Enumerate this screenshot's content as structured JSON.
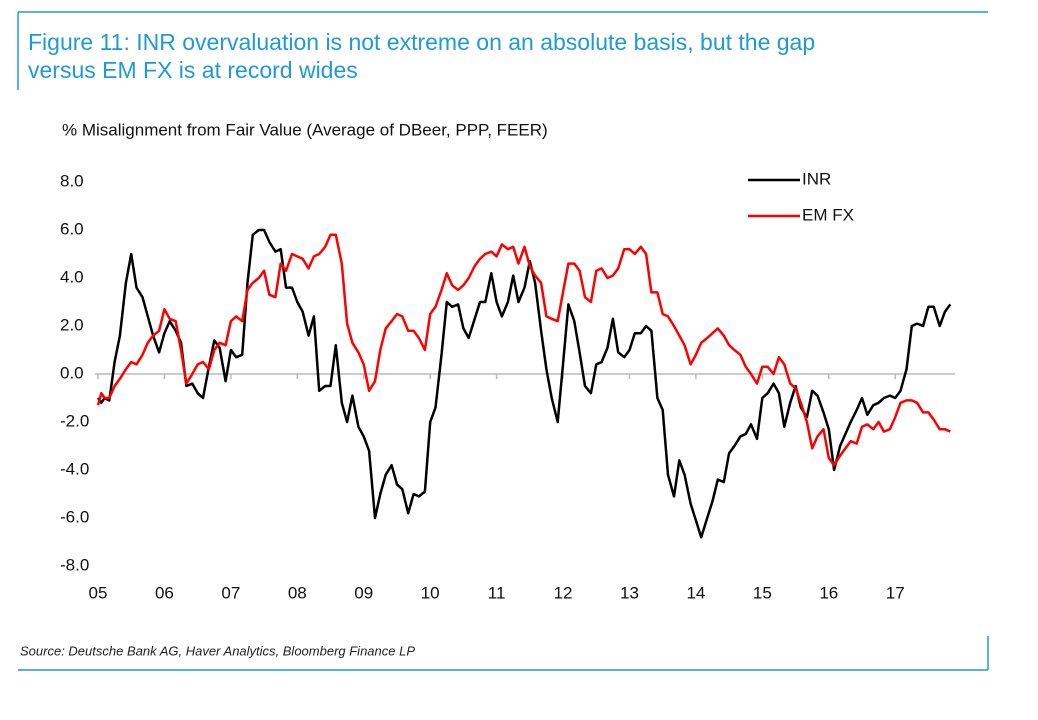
{
  "chart_data": {
    "type": "line",
    "title": "Figure 11: INR overvaluation is not extreme on an absolute basis, but the gap versus EM FX is at record wides",
    "ylabel": "% Misalignment from Fair Value (Average of DBeer, PPP, FEER)",
    "source": "Source: Deutsche Bank AG, Haver Analytics, Bloomberg Finance LP",
    "legend": "top-right",
    "grid": false,
    "xlim": [
      2005,
      2017.9
    ],
    "xticks": [
      {
        "value": 2005,
        "label": "05"
      },
      {
        "value": 2006,
        "label": "06"
      },
      {
        "value": 2007,
        "label": "07"
      },
      {
        "value": 2008,
        "label": "08"
      },
      {
        "value": 2009,
        "label": "09"
      },
      {
        "value": 2010,
        "label": "10"
      },
      {
        "value": 2011,
        "label": "11"
      },
      {
        "value": 2012,
        "label": "12"
      },
      {
        "value": 2013,
        "label": "13"
      },
      {
        "value": 2014,
        "label": "14"
      },
      {
        "value": 2015,
        "label": "15"
      },
      {
        "value": 2016,
        "label": "16"
      },
      {
        "value": 2017,
        "label": "17"
      }
    ],
    "ylim": [
      -8,
      8
    ],
    "yticks": [
      {
        "value": 8,
        "label": "8.0"
      },
      {
        "value": 6,
        "label": "6.0"
      },
      {
        "value": 4,
        "label": "4.0"
      },
      {
        "value": 2,
        "label": "2.0"
      },
      {
        "value": 0,
        "label": "0.0"
      },
      {
        "value": -2,
        "label": "-2.0"
      },
      {
        "value": -4,
        "label": "-4.0"
      },
      {
        "value": -6,
        "label": "-6.0"
      },
      {
        "value": -8,
        "label": "-8.0"
      }
    ],
    "x": [
      2005.0,
      2005.05,
      2005.1,
      2005.17,
      2005.25,
      2005.33,
      2005.42,
      2005.5,
      2005.58,
      2005.67,
      2005.75,
      2005.83,
      2005.92,
      2006.0,
      2006.08,
      2006.17,
      2006.25,
      2006.33,
      2006.42,
      2006.5,
      2006.58,
      2006.67,
      2006.75,
      2006.83,
      2006.92,
      2007.0,
      2007.08,
      2007.17,
      2007.25,
      2007.33,
      2007.42,
      2007.5,
      2007.58,
      2007.67,
      2007.75,
      2007.83,
      2007.92,
      2008.0,
      2008.08,
      2008.17,
      2008.25,
      2008.33,
      2008.42,
      2008.5,
      2008.58,
      2008.67,
      2008.75,
      2008.83,
      2008.92,
      2009.0,
      2009.08,
      2009.17,
      2009.25,
      2009.33,
      2009.42,
      2009.5,
      2009.58,
      2009.67,
      2009.75,
      2009.83,
      2009.92,
      2010.0,
      2010.08,
      2010.17,
      2010.25,
      2010.33,
      2010.42,
      2010.5,
      2010.58,
      2010.67,
      2010.75,
      2010.83,
      2010.92,
      2011.0,
      2011.08,
      2011.17,
      2011.25,
      2011.33,
      2011.42,
      2011.5,
      2011.58,
      2011.67,
      2011.75,
      2011.83,
      2011.92,
      2012.0,
      2012.08,
      2012.17,
      2012.25,
      2012.33,
      2012.42,
      2012.5,
      2012.58,
      2012.67,
      2012.75,
      2012.83,
      2012.92,
      2013.0,
      2013.08,
      2013.17,
      2013.25,
      2013.33,
      2013.42,
      2013.5,
      2013.58,
      2013.67,
      2013.75,
      2013.83,
      2013.92,
      2014.0,
      2014.08,
      2014.17,
      2014.25,
      2014.33,
      2014.42,
      2014.5,
      2014.58,
      2014.67,
      2014.75,
      2014.83,
      2014.92,
      2015.0,
      2015.08,
      2015.17,
      2015.25,
      2015.33,
      2015.42,
      2015.5,
      2015.58,
      2015.67,
      2015.75,
      2015.83,
      2015.92,
      2016.0,
      2016.08,
      2016.17,
      2016.25,
      2016.33,
      2016.42,
      2016.5,
      2016.58,
      2016.67,
      2016.75,
      2016.83,
      2016.92,
      2017.0,
      2017.08,
      2017.17,
      2017.25,
      2017.33,
      2017.42,
      2017.5,
      2017.58,
      2017.67,
      2017.75,
      2017.83
    ],
    "series": [
      {
        "name": "INR",
        "color": "#000000",
        "values": [
          -1.0,
          -1.2,
          -1.0,
          -1.1,
          0.5,
          1.6,
          3.8,
          5.0,
          3.6,
          3.2,
          2.4,
          1.6,
          0.9,
          1.7,
          2.2,
          1.8,
          1.3,
          -0.5,
          -0.4,
          -0.8,
          -1.0,
          0.3,
          1.4,
          1.1,
          -0.3,
          1.0,
          0.7,
          0.8,
          3.8,
          5.8,
          6.0,
          6.0,
          5.5,
          5.1,
          5.2,
          3.6,
          3.6,
          3.0,
          2.6,
          1.6,
          2.4,
          -0.7,
          -0.5,
          -0.5,
          1.2,
          -1.2,
          -2.0,
          -0.9,
          -2.2,
          -2.6,
          -3.2,
          -6.0,
          -5.0,
          -4.2,
          -3.8,
          -4.6,
          -4.8,
          -5.8,
          -5.0,
          -5.1,
          -4.9,
          -2.0,
          -1.4,
          0.8,
          3.0,
          2.8,
          2.9,
          1.9,
          1.5,
          2.3,
          3.0,
          3.0,
          4.2,
          3.0,
          2.4,
          3.0,
          4.1,
          3.0,
          3.6,
          4.7,
          3.8,
          1.8,
          0.2,
          -1.0,
          -2.0,
          0.4,
          2.9,
          2.2,
          0.9,
          -0.5,
          -0.8,
          0.4,
          0.5,
          1.1,
          2.3,
          0.9,
          0.7,
          1.0,
          1.7,
          1.7,
          2.0,
          1.8,
          -1.0,
          -1.5,
          -4.2,
          -5.1,
          -3.6,
          -4.2,
          -5.4,
          -6.1,
          -6.8,
          -6.0,
          -5.3,
          -4.4,
          -4.5,
          -3.3,
          -3.0,
          -2.6,
          -2.5,
          -2.1,
          -2.7,
          -1.0,
          -0.8,
          -0.4,
          -0.8,
          -2.2,
          -1.2,
          -0.5,
          -1.4,
          -1.8,
          -0.7,
          -0.9,
          -1.6,
          -2.3,
          -4.0,
          -3.0,
          -2.5,
          -2.0,
          -1.5,
          -1.0,
          -1.7,
          -1.3,
          -1.2,
          -1.0,
          -0.9,
          -1.0,
          -0.7,
          0.2,
          2.0,
          2.1,
          2.0,
          2.8,
          2.8,
          2.0,
          2.6,
          2.9
        ]
      },
      {
        "name": "EM FX",
        "color": "#ff0000",
        "values": [
          -1.3,
          -0.8,
          -1.0,
          -1.0,
          -0.5,
          -0.2,
          0.2,
          0.5,
          0.4,
          0.8,
          1.3,
          1.6,
          1.8,
          2.7,
          2.3,
          2.2,
          1.0,
          -0.4,
          0.0,
          0.4,
          0.5,
          0.2,
          1.0,
          1.3,
          1.2,
          2.2,
          2.4,
          2.2,
          3.5,
          3.8,
          4.0,
          4.3,
          3.3,
          3.2,
          4.6,
          4.3,
          5.0,
          4.9,
          4.8,
          4.4,
          4.9,
          5.0,
          5.3,
          5.8,
          5.8,
          4.6,
          2.1,
          1.3,
          0.9,
          0.4,
          -0.7,
          -0.3,
          1.0,
          1.9,
          2.2,
          2.5,
          2.4,
          1.8,
          1.8,
          1.5,
          1.0,
          2.5,
          2.8,
          3.5,
          4.2,
          3.7,
          3.5,
          3.7,
          4.0,
          4.5,
          4.8,
          5.0,
          5.1,
          4.9,
          5.4,
          5.2,
          5.3,
          4.6,
          5.3,
          4.5,
          4.1,
          3.8,
          2.4,
          2.3,
          2.2,
          3.4,
          4.6,
          4.6,
          4.3,
          3.2,
          3.0,
          4.3,
          4.4,
          4.0,
          4.1,
          4.4,
          5.2,
          5.2,
          5.0,
          5.3,
          5.0,
          3.4,
          3.4,
          2.5,
          2.4,
          2.0,
          1.6,
          1.2,
          0.4,
          0.8,
          1.3,
          1.5,
          1.7,
          1.9,
          1.6,
          1.2,
          1.0,
          0.8,
          0.3,
          0.0,
          -0.4,
          0.3,
          0.3,
          0.0,
          0.7,
          0.4,
          -0.4,
          -0.6,
          -1.2,
          -2.0,
          -3.1,
          -2.6,
          -2.3,
          -3.5,
          -3.8,
          -3.4,
          -3.1,
          -2.8,
          -2.9,
          -2.2,
          -2.1,
          -2.3,
          -2.0,
          -2.4,
          -2.3,
          -1.8,
          -1.2,
          -1.1,
          -1.1,
          -1.2,
          -1.6,
          -1.6,
          -1.9,
          -2.3,
          -2.3,
          -2.4
        ]
      }
    ]
  }
}
